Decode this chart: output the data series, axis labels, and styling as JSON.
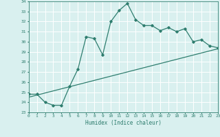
{
  "xlabel": "Humidex (Indice chaleur)",
  "line1_x": [
    0,
    1,
    2,
    3,
    4,
    5,
    6,
    7,
    8,
    9,
    10,
    11,
    12,
    13,
    14,
    15,
    16,
    17,
    18,
    19,
    20,
    21,
    22,
    23
  ],
  "line1_y": [
    24.8,
    24.8,
    24.0,
    23.7,
    23.7,
    25.6,
    27.3,
    30.5,
    30.3,
    28.7,
    32.0,
    33.1,
    33.8,
    32.2,
    31.6,
    31.6,
    31.1,
    31.4,
    31.0,
    31.3,
    30.0,
    30.2,
    29.6,
    29.4
  ],
  "line2_x": [
    0,
    23
  ],
  "line2_y": [
    24.5,
    29.3
  ],
  "line_color": "#2e7d6e",
  "bg_color": "#d9f0ef",
  "grid_color": "#ffffff",
  "ylim": [
    23,
    34
  ],
  "xlim": [
    0,
    23
  ],
  "yticks": [
    23,
    24,
    25,
    26,
    27,
    28,
    29,
    30,
    31,
    32,
    33,
    34
  ],
  "xticks": [
    0,
    1,
    2,
    3,
    4,
    5,
    6,
    7,
    8,
    9,
    10,
    11,
    12,
    13,
    14,
    15,
    16,
    17,
    18,
    19,
    20,
    21,
    22,
    23
  ],
  "marker": "D",
  "marker_size": 1.8,
  "linewidth": 0.9,
  "tick_fontsize": 4.5,
  "xlabel_fontsize": 5.5
}
